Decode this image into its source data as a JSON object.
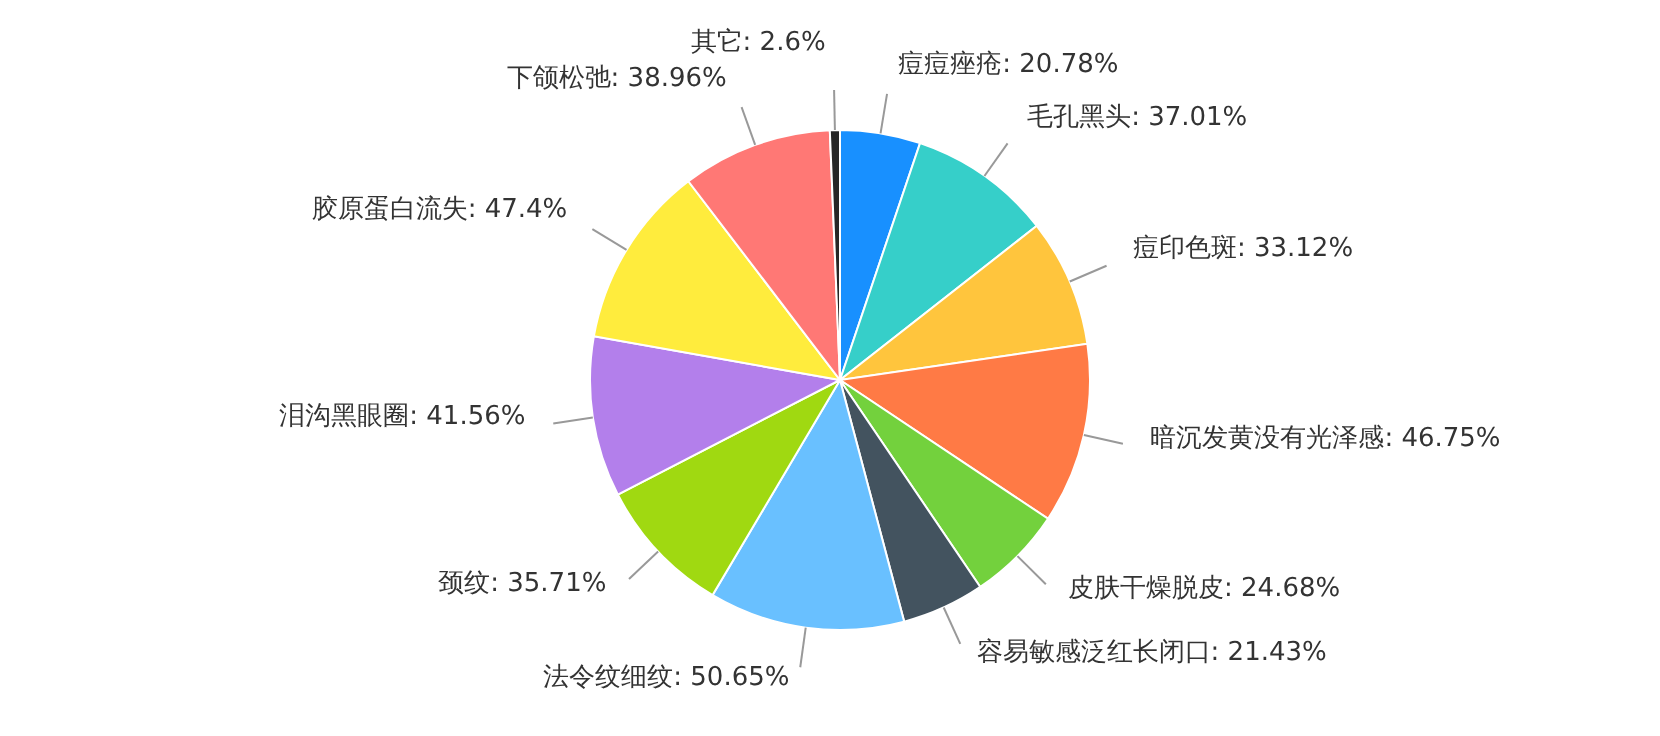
{
  "chart_data": {
    "type": "pie",
    "categories": [
      "痘痘痤疮",
      "毛孔黑头",
      "痘印色斑",
      "暗沉发黄没有光泽感",
      "皮肤干燥脱皮",
      "容易敏感泛红长闭口",
      "法令纹细纹",
      "颈纹",
      "泪沟黑眼圈",
      "胶原蛋白流失",
      "下颌松弛",
      "其它"
    ],
    "values": [
      20.78,
      37.01,
      33.12,
      46.75,
      24.68,
      21.43,
      50.65,
      35.71,
      41.56,
      47.4,
      38.96,
      2.6
    ],
    "value_labels": [
      "20.78%",
      "37.01%",
      "33.12%",
      "46.75%",
      "24.68%",
      "21.43%",
      "50.65%",
      "35.71%",
      "41.56%",
      "47.4%",
      "38.96%",
      "2.6%"
    ],
    "colors": [
      "#1890ff",
      "#36cfc9",
      "#ffc53d",
      "#ff7a45",
      "#73d13d",
      "#43535f",
      "#69c0ff",
      "#a0d911",
      "#b37feb",
      "#ffec3d",
      "#ff7875",
      "#262626"
    ],
    "legend": false
  }
}
